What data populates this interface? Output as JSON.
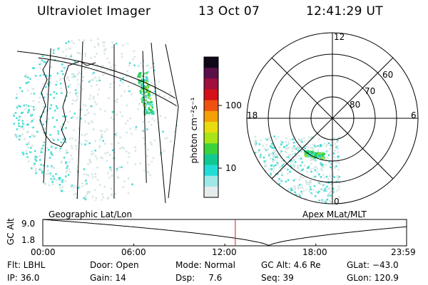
{
  "header": {
    "instrument": "Ultraviolet Imager",
    "date": "13 Oct 07",
    "time": "12:41:29 UT"
  },
  "colorbar": {
    "unit": "photon cm⁻²s⁻¹",
    "ticks": [
      {
        "label": "100",
        "value": 100
      },
      {
        "label": "10",
        "value": 10
      }
    ],
    "colors": [
      "#e6ecec",
      "#9ee8e8",
      "#22dcd6",
      "#10c890",
      "#3cd23c",
      "#a8e418",
      "#e8dc10",
      "#f4a008",
      "#f05010",
      "#d41018",
      "#a0103c",
      "#5a1048",
      "#100818"
    ]
  },
  "polar_plot": {
    "top_label": "12",
    "bottom_label": "0",
    "left_label": "18",
    "right_label": "6",
    "ring_labels": [
      "60",
      "70",
      "80"
    ]
  },
  "panel_labels": {
    "left": "Geographic Lat/Lon",
    "right": "Apex MLat/MLT"
  },
  "orbit_plot": {
    "ylabel": "GC Alt",
    "y_ticks": [
      "9.0",
      "1.8"
    ],
    "ymin": 1.8,
    "ymax": 9.0,
    "x_ticks": [
      {
        "label": "00:00",
        "hours": 0
      },
      {
        "label": "06:00",
        "hours": 6
      },
      {
        "label": "12:00",
        "hours": 12
      },
      {
        "label": "18:00",
        "hours": 18
      },
      {
        "label": "23:59",
        "hours": 23.983
      }
    ],
    "current_time_hours": 12.69,
    "perigee_time_hours": 14.9
  },
  "info": {
    "flt": "Flt: LBHL",
    "ip": "IP: 36.0",
    "door": "Door: Open",
    "gain": "Gain: 14",
    "mode": "Mode: Normal",
    "dsp": "Dsp:     7.6",
    "gcalt": "GC Alt: 4.6 Re",
    "seq": "Seq: 39",
    "glat": "GLat: −43.0",
    "glon": "GLon: 120.9"
  },
  "colors": {
    "orbit_marker": "#d02020",
    "faint": "#d4e6e4",
    "cyan": "#46dcd4",
    "green": "#28cc50",
    "yellow_green": "#a8e020"
  }
}
